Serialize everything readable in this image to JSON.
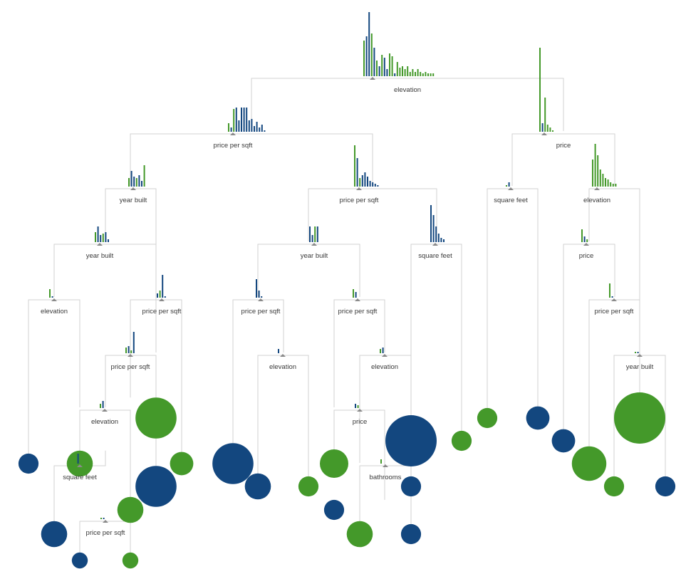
{
  "colors": {
    "blue": "#13477f",
    "green": "#44992a",
    "branch": "#d2d2d2",
    "text": "#3a3a3a",
    "marker": "#8a8a8a"
  },
  "nodes": [
    {
      "id": "root",
      "label": "elevation"
    },
    {
      "id": "n1",
      "label": "price per sqft"
    },
    {
      "id": "n2",
      "label": "price"
    },
    {
      "id": "n3",
      "label": "year built"
    },
    {
      "id": "n4",
      "label": "price per sqft"
    },
    {
      "id": "n5",
      "label": "square feet"
    },
    {
      "id": "n6",
      "label": "elevation"
    },
    {
      "id": "n7",
      "label": "year built"
    },
    {
      "id": "n8",
      "label": "year built"
    },
    {
      "id": "n9",
      "label": "square feet"
    },
    {
      "id": "n10",
      "label": "price"
    },
    {
      "id": "n11",
      "label": "elevation"
    },
    {
      "id": "n12",
      "label": "price per sqft"
    },
    {
      "id": "n13",
      "label": "price per sqft"
    },
    {
      "id": "n14",
      "label": "price per sqft"
    },
    {
      "id": "n15",
      "label": "price per sqft"
    },
    {
      "id": "n16",
      "label": "price per sqft"
    },
    {
      "id": "n17",
      "label": "elevation"
    },
    {
      "id": "n18",
      "label": "elevation"
    },
    {
      "id": "n19",
      "label": "year built"
    },
    {
      "id": "n20",
      "label": "elevation"
    },
    {
      "id": "n21",
      "label": "price"
    },
    {
      "id": "n22",
      "label": "square feet"
    },
    {
      "id": "n23",
      "label": "bathrooms"
    },
    {
      "id": "n24",
      "label": "price per sqft"
    }
  ],
  "leaves": [
    {
      "id": "L1",
      "cls": "blue",
      "size": 0.1
    },
    {
      "id": "L2",
      "cls": "green",
      "size": 0.2
    },
    {
      "id": "L3",
      "cls": "blue",
      "size": 0.2
    },
    {
      "id": "L4",
      "cls": "blue",
      "size": 0.05
    },
    {
      "id": "L5",
      "cls": "green",
      "size": 0.05
    },
    {
      "id": "L6",
      "cls": "green",
      "size": 0.2
    },
    {
      "id": "L7",
      "cls": "green",
      "size": 0.6
    },
    {
      "id": "L8",
      "cls": "blue",
      "size": 0.6
    },
    {
      "id": "L9",
      "cls": "green",
      "size": 0.15
    },
    {
      "id": "L10",
      "cls": "blue",
      "size": 0.6
    },
    {
      "id": "L11",
      "cls": "blue",
      "size": 0.2
    },
    {
      "id": "L12",
      "cls": "green",
      "size": 0.1
    },
    {
      "id": "L13",
      "cls": "green",
      "size": 0.25
    },
    {
      "id": "L14",
      "cls": "blue",
      "size": 0.1
    },
    {
      "id": "L15",
      "cls": "green",
      "size": 0.2
    },
    {
      "id": "L16",
      "cls": "blue",
      "size": 0.1
    },
    {
      "id": "L17",
      "cls": "blue",
      "size": 1.0
    },
    {
      "id": "L18",
      "cls": "blue",
      "size": 0.1
    },
    {
      "id": "L19",
      "cls": "green",
      "size": 0.1
    },
    {
      "id": "L20",
      "cls": "green",
      "size": 0.1
    },
    {
      "id": "L21",
      "cls": "blue",
      "size": 0.15
    },
    {
      "id": "L22",
      "cls": "blue",
      "size": 0.15
    },
    {
      "id": "L23",
      "cls": "green",
      "size": 0.4
    },
    {
      "id": "L24",
      "cls": "green",
      "size": 1.0
    },
    {
      "id": "L25",
      "cls": "green",
      "size": 0.1
    },
    {
      "id": "L26",
      "cls": "blue",
      "size": 0.1
    }
  ]
}
